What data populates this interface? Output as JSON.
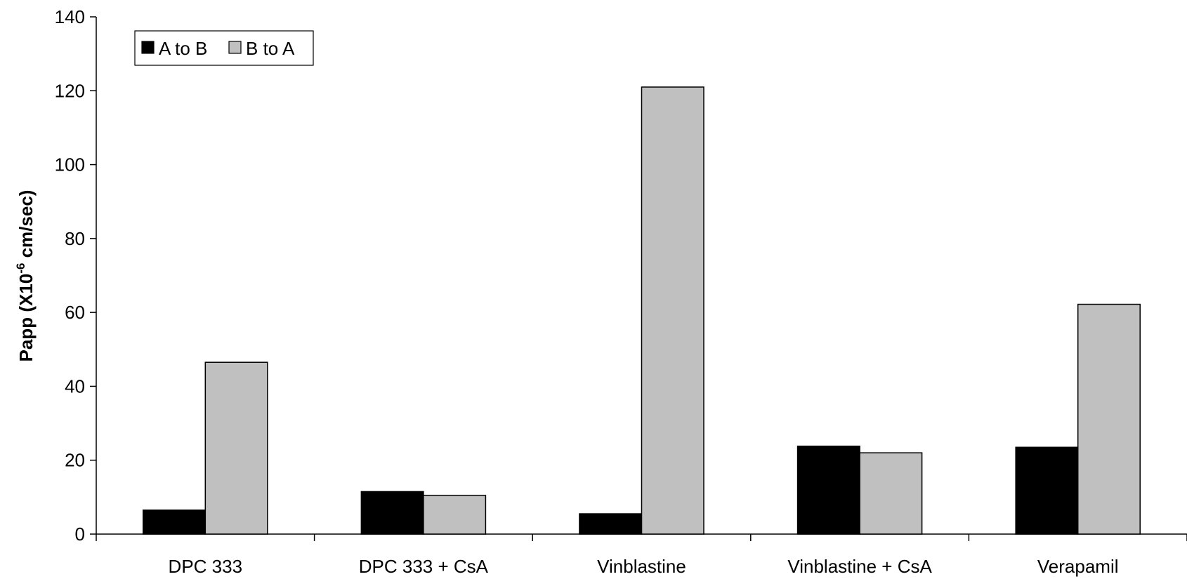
{
  "chart_data": {
    "type": "bar",
    "categories": [
      "DPC 333",
      "DPC 333 + CsA",
      "Vinblastine",
      "Vinblastine + CsA",
      "Verapamil"
    ],
    "series": [
      {
        "name": "A to B",
        "values": [
          6.5,
          11.5,
          5.5,
          23.8,
          23.5
        ],
        "color": "#000000"
      },
      {
        "name": "B to A",
        "values": [
          46.5,
          10.5,
          121,
          22,
          62.2
        ],
        "color": "#c0c0c0"
      }
    ],
    "title": "",
    "xlabel": "",
    "ylabel": {
      "main": "Papp (X10",
      "superscript": "-6",
      "suffix": " cm/sec)"
    },
    "ylim": [
      0,
      140
    ],
    "yticks": [
      0,
      20,
      40,
      60,
      80,
      100,
      120,
      140
    ],
    "ytick_labels": [
      "0",
      "20",
      "40",
      "60",
      "80",
      "100",
      "120",
      "140"
    ],
    "grid": false,
    "legend_position": "top-left"
  }
}
